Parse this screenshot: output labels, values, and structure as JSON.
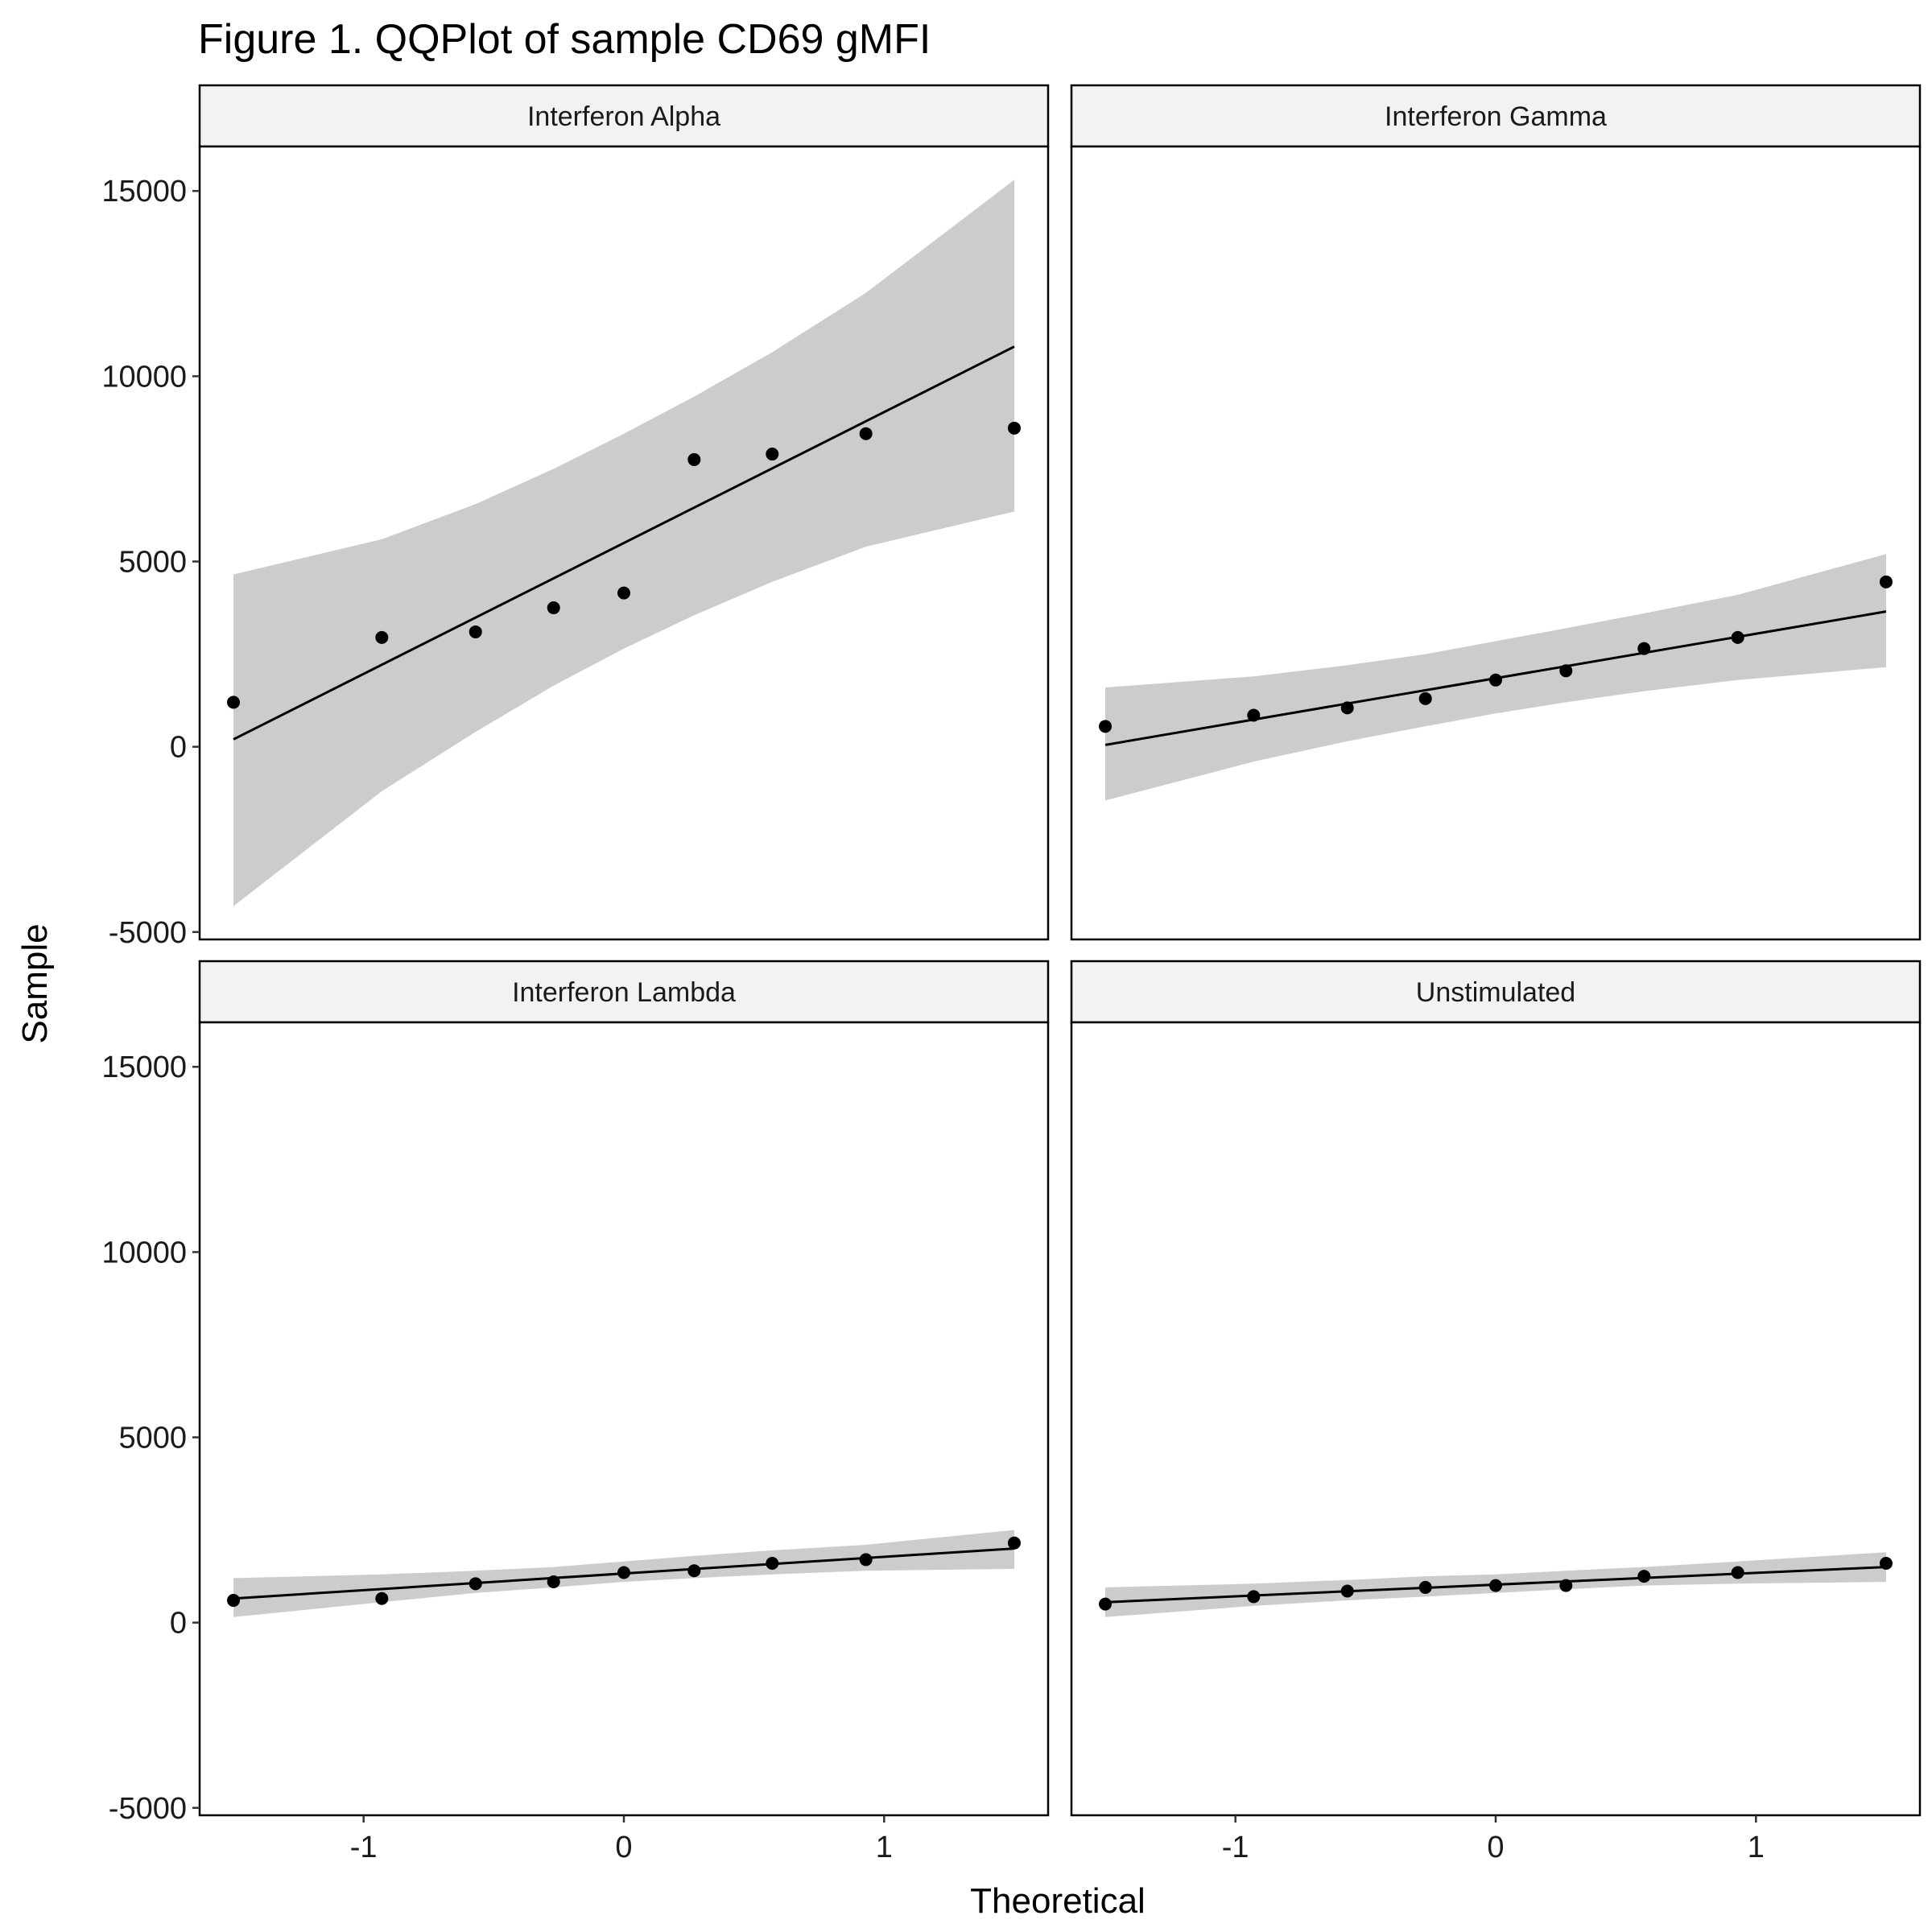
{
  "chart_data": {
    "type": "scatter",
    "subtype": "qq-plot-faceted",
    "title": "Figure 1. QQPlot of sample CD69 gMFI",
    "xlabel": "Theoretical",
    "ylabel": "Sample",
    "xlim": [
      -1.63,
      1.63
    ],
    "ylim": [
      -5200,
      16200
    ],
    "x_ticks": [
      -1,
      0,
      1
    ],
    "y_ticks": [
      -5000,
      0,
      5000,
      10000,
      15000
    ],
    "grid": false,
    "band_color": "#cccccc",
    "point_color": "#000000",
    "line_color": "#000000",
    "strip_fill": "#f2f2f2",
    "panels": [
      {
        "name": "Interferon Alpha",
        "x": [
          -1.5,
          -0.93,
          -0.57,
          -0.27,
          0,
          0.27,
          0.57,
          0.93,
          1.5
        ],
        "y": [
          1200,
          2950,
          3100,
          3750,
          4150,
          7750,
          7900,
          8450,
          8600
        ],
        "line": [
          [
            -1.5,
            200
          ],
          [
            1.5,
            10800
          ]
        ],
        "band_x": [
          -1.5,
          -0.93,
          -0.57,
          -0.27,
          0,
          0.27,
          0.57,
          0.93,
          1.5
        ],
        "band_upper": [
          4650,
          5600,
          6550,
          7500,
          8450,
          9450,
          10650,
          12250,
          15300
        ],
        "band_lower": [
          -4300,
          -1200,
          400,
          1650,
          2650,
          3550,
          4450,
          5400,
          6350
        ]
      },
      {
        "name": "Interferon Gamma",
        "x": [
          -1.5,
          -0.93,
          -0.57,
          -0.27,
          0,
          0.27,
          0.57,
          0.93,
          1.5
        ],
        "y": [
          550,
          850,
          1050,
          1300,
          1800,
          2050,
          2650,
          2950,
          4450
        ],
        "line": [
          [
            -1.5,
            50
          ],
          [
            1.5,
            3650
          ]
        ],
        "band_x": [
          -1.5,
          -0.93,
          -0.57,
          -0.27,
          0,
          0.27,
          0.57,
          0.93,
          1.5
        ],
        "band_upper": [
          1600,
          1900,
          2200,
          2500,
          2850,
          3200,
          3600,
          4100,
          5200
        ],
        "band_lower": [
          -1450,
          -400,
          150,
          550,
          900,
          1200,
          1500,
          1800,
          2150
        ]
      },
      {
        "name": "Interferon Lambda",
        "x": [
          -1.5,
          -0.93,
          -0.57,
          -0.27,
          0,
          0.27,
          0.57,
          0.93,
          1.5
        ],
        "y": [
          600,
          650,
          1050,
          1100,
          1350,
          1400,
          1600,
          1700,
          2150
        ],
        "line": [
          [
            -1.5,
            650
          ],
          [
            1.5,
            2000
          ]
        ],
        "band_x": [
          -1.5,
          -0.93,
          -0.57,
          -0.27,
          0,
          0.27,
          0.57,
          0.93,
          1.5
        ],
        "band_upper": [
          1200,
          1300,
          1400,
          1500,
          1650,
          1800,
          1950,
          2100,
          2500
        ],
        "band_lower": [
          150,
          550,
          800,
          950,
          1100,
          1200,
          1300,
          1400,
          1450
        ]
      },
      {
        "name": "Unstimulated",
        "x": [
          -1.5,
          -0.93,
          -0.57,
          -0.27,
          0,
          0.27,
          0.57,
          0.93,
          1.5
        ],
        "y": [
          500,
          700,
          850,
          950,
          1000,
          1000,
          1250,
          1350,
          1600
        ],
        "line": [
          [
            -1.5,
            550
          ],
          [
            1.5,
            1500
          ]
        ],
        "band_x": [
          -1.5,
          -0.93,
          -0.57,
          -0.27,
          0,
          0.27,
          0.57,
          0.93,
          1.5
        ],
        "band_upper": [
          950,
          1050,
          1150,
          1250,
          1300,
          1400,
          1500,
          1650,
          1900
        ],
        "band_lower": [
          150,
          450,
          600,
          700,
          800,
          900,
          1000,
          1050,
          1100
        ]
      }
    ]
  }
}
